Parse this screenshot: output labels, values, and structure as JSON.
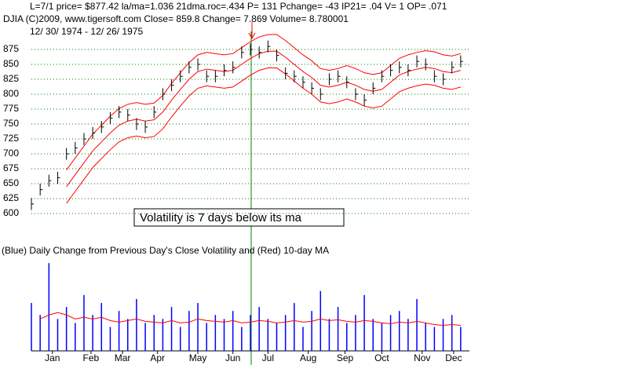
{
  "chart_data": [
    {
      "type": "hilo",
      "header_lines": [
        "L=7/1   price= $877.42  la/ma=1.036 21dma.roc=.434 P=  131 Pchange= -43 IP21= .04 V= 1 OP= .071",
        "DJIA    (C)2009, www.tigersoft.com    Close=  859.8   Change= 7.869 Volume= 8.780001",
        "12/ 30/ 1974 - 12/ 26/ 1975"
      ],
      "annotation": "Volatility is 7 days below its ma",
      "x": [
        0,
        5,
        10,
        15,
        20,
        25,
        30,
        35,
        40,
        45,
        50,
        55,
        60,
        65,
        70,
        75,
        80,
        85,
        90,
        95,
        100,
        105,
        110,
        115,
        120,
        125,
        130,
        135,
        140,
        145,
        150,
        155,
        160,
        165,
        170,
        175,
        180,
        185,
        190,
        195,
        200,
        205,
        210,
        215,
        220,
        225,
        230,
        235,
        240,
        245
      ],
      "high": [
        626,
        650,
        665,
        670,
        710,
        720,
        735,
        745,
        755,
        770,
        780,
        775,
        760,
        755,
        780,
        810,
        825,
        840,
        855,
        860,
        840,
        840,
        850,
        855,
        880,
        885,
        880,
        890,
        875,
        845,
        840,
        830,
        820,
        810,
        835,
        840,
        830,
        810,
        800,
        820,
        840,
        850,
        855,
        850,
        865,
        860,
        840,
        835,
        855,
        865
      ],
      "low": [
        606,
        630,
        645,
        650,
        690,
        700,
        715,
        725,
        735,
        750,
        760,
        755,
        740,
        735,
        760,
        790,
        805,
        820,
        835,
        840,
        820,
        820,
        830,
        835,
        860,
        865,
        860,
        870,
        855,
        825,
        820,
        810,
        800,
        790,
        815,
        820,
        810,
        790,
        780,
        800,
        820,
        830,
        835,
        830,
        845,
        840,
        820,
        815,
        835,
        845
      ],
      "close": [
        616,
        640,
        655,
        660,
        700,
        710,
        725,
        735,
        745,
        760,
        770,
        765,
        750,
        745,
        770,
        800,
        815,
        830,
        845,
        850,
        830,
        830,
        840,
        845,
        870,
        875,
        870,
        880,
        865,
        835,
        830,
        820,
        810,
        800,
        825,
        830,
        820,
        800,
        790,
        810,
        830,
        840,
        845,
        840,
        855,
        850,
        830,
        825,
        845,
        855
      ],
      "bar_color": "#000000",
      "series": [
        {
          "color": "#ff0000",
          "values": [
            null,
            null,
            null,
            null,
            673,
            693,
            713,
            733,
            748,
            763,
            776,
            783,
            786,
            783,
            785,
            798,
            818,
            836,
            853,
            866,
            870,
            868,
            866,
            868,
            878,
            888,
            896,
            900,
            900,
            890,
            878,
            866,
            856,
            843,
            840,
            843,
            848,
            843,
            836,
            833,
            836,
            848,
            860,
            866,
            870,
            873,
            871,
            866,
            864,
            868
          ]
        },
        {
          "color": "#ff0000",
          "values": [
            null,
            null,
            null,
            null,
            645,
            665,
            685,
            705,
            720,
            735,
            748,
            755,
            758,
            755,
            757,
            770,
            790,
            808,
            825,
            838,
            842,
            840,
            838,
            840,
            850,
            860,
            868,
            872,
            872,
            862,
            850,
            838,
            828,
            815,
            812,
            815,
            820,
            815,
            808,
            805,
            808,
            820,
            832,
            838,
            842,
            845,
            843,
            838,
            836,
            840
          ]
        },
        {
          "color": "#ff0000",
          "values": [
            null,
            null,
            null,
            null,
            617,
            637,
            657,
            677,
            692,
            707,
            720,
            727,
            730,
            727,
            729,
            742,
            762,
            780,
            797,
            810,
            814,
            812,
            810,
            812,
            822,
            832,
            840,
            844,
            844,
            834,
            822,
            810,
            800,
            787,
            784,
            787,
            792,
            787,
            780,
            777,
            780,
            792,
            804,
            810,
            814,
            817,
            815,
            810,
            808,
            812
          ]
        }
      ],
      "xlim": [
        0,
        250
      ],
      "ylim": [
        600,
        900
      ],
      "yticks": [
        600,
        625,
        650,
        675,
        700,
        725,
        750,
        775,
        800,
        825,
        850,
        875
      ],
      "grid": true,
      "grid_color": "#008000"
    },
    {
      "type": "bar",
      "title": "(Blue) Daily Change from Previous Day's Close Volatility and (Red) 10-day MA",
      "x": [
        0,
        5,
        10,
        15,
        20,
        25,
        30,
        35,
        40,
        45,
        50,
        55,
        60,
        65,
        70,
        75,
        80,
        85,
        90,
        95,
        100,
        105,
        110,
        115,
        120,
        125,
        130,
        135,
        140,
        145,
        150,
        155,
        160,
        165,
        170,
        175,
        180,
        185,
        190,
        195,
        200,
        205,
        210,
        215,
        220,
        225,
        230,
        235,
        240,
        245
      ],
      "series": [
        {
          "color": "#0000ff",
          "values": [
            60,
            45,
            110,
            40,
            55,
            35,
            70,
            45,
            60,
            30,
            50,
            40,
            65,
            35,
            45,
            40,
            55,
            30,
            50,
            60,
            35,
            45,
            40,
            50,
            30,
            45,
            55,
            40,
            35,
            45,
            60,
            30,
            50,
            75,
            40,
            55,
            35,
            45,
            70,
            40,
            35,
            45,
            50,
            40,
            65,
            35,
            30,
            40,
            45,
            30
          ]
        },
        {
          "color": "#ff0000",
          "values": [
            null,
            40,
            45,
            48,
            45,
            40,
            42,
            40,
            42,
            38,
            36,
            38,
            40,
            37,
            36,
            35,
            38,
            35,
            36,
            40,
            38,
            37,
            36,
            38,
            35,
            36,
            38,
            37,
            35,
            36,
            38,
            36,
            37,
            40,
            38,
            39,
            37,
            36,
            38,
            37,
            35,
            34,
            36,
            35,
            37,
            35,
            33,
            32,
            33,
            32
          ]
        }
      ],
      "xlim": [
        0,
        250
      ],
      "ylim": [
        0,
        120
      ],
      "xticks": [
        {
          "value": 12,
          "label": "Jan"
        },
        {
          "value": 34,
          "label": "Feb"
        },
        {
          "value": 52,
          "label": "Mar"
        },
        {
          "value": 72,
          "label": "Apr"
        },
        {
          "value": 95,
          "label": "May"
        },
        {
          "value": 115,
          "label": "Jun"
        },
        {
          "value": 135,
          "label": "Jul"
        },
        {
          "value": 158,
          "label": "Aug"
        },
        {
          "value": 179,
          "label": "Sep"
        },
        {
          "value": 200,
          "label": "Oct"
        },
        {
          "value": 223,
          "label": "Nov"
        },
        {
          "value": 241,
          "label": "Dec"
        }
      ]
    }
  ]
}
